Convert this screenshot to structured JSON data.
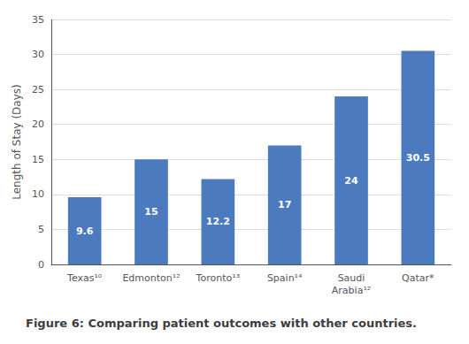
{
  "chart_data": {
    "type": "bar",
    "title": "Figure 6: Comparing patient outcomes with other countries.",
    "ylabel": "Length of Stay (Days)",
    "categories": [
      "Texas¹⁰",
      "Edmonton¹²",
      "Toronto¹³",
      "Spain¹⁴",
      "Saudi\nArabia¹²",
      "Qatar*"
    ],
    "values": [
      9.6,
      15,
      12.2,
      17,
      24,
      30.5
    ],
    "color": "#4B7BBE",
    "ylim": [
      0,
      35
    ],
    "yticks": [
      0,
      5,
      10,
      15,
      20,
      25,
      30,
      35
    ],
    "grid": true,
    "data_labels": true
  }
}
